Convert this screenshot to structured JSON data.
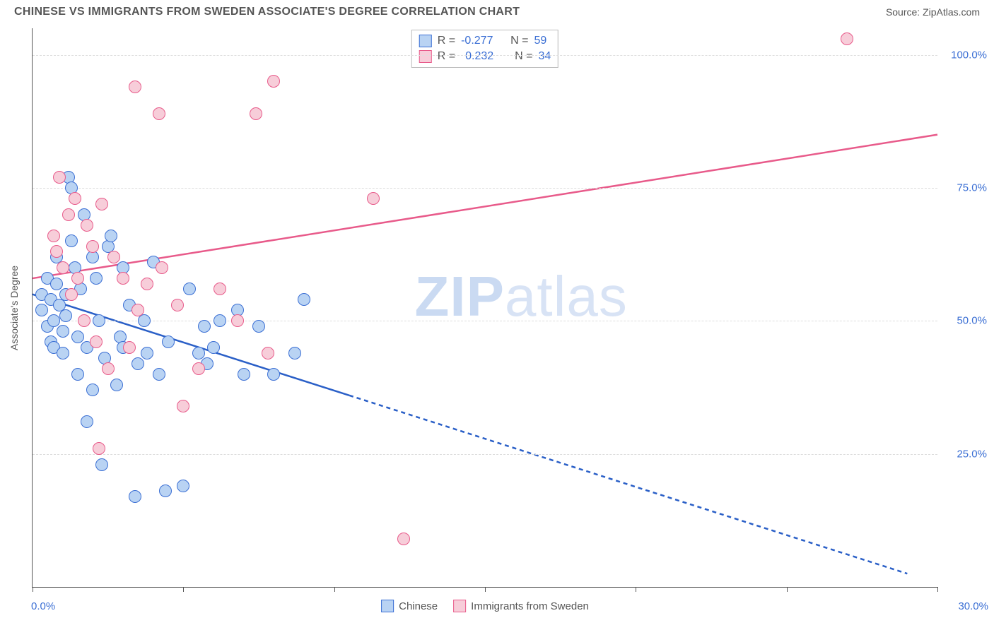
{
  "header": {
    "title": "CHINESE VS IMMIGRANTS FROM SWEDEN ASSOCIATE'S DEGREE CORRELATION CHART",
    "source": "Source: ZipAtlas.com"
  },
  "watermark": {
    "zip": "ZIP",
    "atlas": "atlas"
  },
  "chart": {
    "type": "scatter",
    "y_axis_title": "Associate's Degree",
    "background_color": "#ffffff",
    "grid_color": "#dddddd",
    "axis_color": "#555555",
    "tick_label_color": "#3b6fd4",
    "xlim": [
      0,
      30
    ],
    "ylim": [
      0,
      105
    ],
    "x_ticks": [
      0,
      5,
      10,
      15,
      20,
      25,
      30
    ],
    "x_tick_labels": {
      "min": "0.0%",
      "max": "30.0%"
    },
    "y_ticks": [
      25,
      50,
      75,
      100
    ],
    "y_tick_labels": [
      "25.0%",
      "50.0%",
      "75.0%",
      "100.0%"
    ],
    "marker_radius": 9,
    "marker_border_width": 1.5,
    "series": [
      {
        "key": "chinese",
        "label": "Chinese",
        "fill": "#b9d3f3",
        "stroke": "#3b6fd4",
        "line_color": "#2a5fc7",
        "r_value": "-0.277",
        "n_value": "59",
        "trend": {
          "x1": 0,
          "y1": 55,
          "x2": 10.5,
          "y2": 36,
          "x2_ext": 29,
          "y2_ext": 2.5
        },
        "points": [
          [
            0.3,
            55
          ],
          [
            0.3,
            52
          ],
          [
            0.5,
            58
          ],
          [
            0.5,
            49
          ],
          [
            0.6,
            54
          ],
          [
            0.6,
            46
          ],
          [
            0.7,
            50
          ],
          [
            0.7,
            45
          ],
          [
            0.8,
            57
          ],
          [
            0.8,
            62
          ],
          [
            0.9,
            53
          ],
          [
            1.0,
            48
          ],
          [
            1.0,
            44
          ],
          [
            1.1,
            55
          ],
          [
            1.1,
            51
          ],
          [
            1.2,
            77
          ],
          [
            1.3,
            75
          ],
          [
            1.3,
            65
          ],
          [
            1.4,
            60
          ],
          [
            1.5,
            47
          ],
          [
            1.5,
            40
          ],
          [
            1.6,
            56
          ],
          [
            1.7,
            70
          ],
          [
            1.8,
            45
          ],
          [
            1.8,
            31
          ],
          [
            2.0,
            37
          ],
          [
            2.0,
            62
          ],
          [
            2.1,
            58
          ],
          [
            2.2,
            50
          ],
          [
            2.3,
            23
          ],
          [
            2.4,
            43
          ],
          [
            2.5,
            64
          ],
          [
            2.6,
            66
          ],
          [
            2.8,
            38
          ],
          [
            2.9,
            47
          ],
          [
            3.0,
            45
          ],
          [
            3.0,
            60
          ],
          [
            3.2,
            53
          ],
          [
            3.4,
            17
          ],
          [
            3.5,
            42
          ],
          [
            3.7,
            50
          ],
          [
            3.8,
            44
          ],
          [
            4.0,
            61
          ],
          [
            4.2,
            40
          ],
          [
            4.4,
            18
          ],
          [
            4.5,
            46
          ],
          [
            5.0,
            19
          ],
          [
            5.2,
            56
          ],
          [
            5.5,
            44
          ],
          [
            5.7,
            49
          ],
          [
            5.8,
            42
          ],
          [
            6.0,
            45
          ],
          [
            6.2,
            50
          ],
          [
            6.8,
            52
          ],
          [
            7.0,
            40
          ],
          [
            7.5,
            49
          ],
          [
            8.0,
            40
          ],
          [
            8.7,
            44
          ],
          [
            9.0,
            54
          ]
        ]
      },
      {
        "key": "sweden",
        "label": "Immigrants from Sweden",
        "fill": "#f7cdd9",
        "stroke": "#e85a8a",
        "line_color": "#e85a8a",
        "r_value": "0.232",
        "n_value": "34",
        "trend": {
          "x1": 0,
          "y1": 58,
          "x2": 30,
          "y2": 85
        },
        "points": [
          [
            0.7,
            66
          ],
          [
            0.8,
            63
          ],
          [
            0.9,
            77
          ],
          [
            1.0,
            60
          ],
          [
            1.2,
            70
          ],
          [
            1.3,
            55
          ],
          [
            1.4,
            73
          ],
          [
            1.5,
            58
          ],
          [
            1.7,
            50
          ],
          [
            1.8,
            68
          ],
          [
            2.0,
            64
          ],
          [
            2.1,
            46
          ],
          [
            2.2,
            26
          ],
          [
            2.3,
            72
          ],
          [
            2.5,
            41
          ],
          [
            2.7,
            62
          ],
          [
            3.0,
            58
          ],
          [
            3.2,
            45
          ],
          [
            3.4,
            94
          ],
          [
            3.5,
            52
          ],
          [
            3.8,
            57
          ],
          [
            4.2,
            89
          ],
          [
            4.3,
            60
          ],
          [
            4.8,
            53
          ],
          [
            5.0,
            34
          ],
          [
            5.5,
            41
          ],
          [
            6.2,
            56
          ],
          [
            6.8,
            50
          ],
          [
            7.4,
            89
          ],
          [
            7.8,
            44
          ],
          [
            8.0,
            95
          ],
          [
            11.3,
            73
          ],
          [
            12.3,
            9
          ],
          [
            27.0,
            103
          ]
        ]
      }
    ],
    "legend_top_labels": {
      "r_prefix": "R = ",
      "n_prefix": "N = "
    }
  }
}
